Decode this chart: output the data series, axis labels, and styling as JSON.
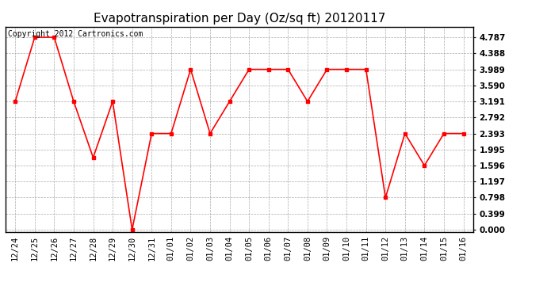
{
  "title": "Evapotranspiration per Day (Oz/sq ft) 20120117",
  "copyright_text": "Copyright 2012 Cartronics.com",
  "x_labels": [
    "12/24",
    "12/25",
    "12/26",
    "12/27",
    "12/28",
    "12/29",
    "12/30",
    "12/31",
    "01/01",
    "01/02",
    "01/03",
    "01/04",
    "01/05",
    "01/06",
    "01/07",
    "01/08",
    "01/09",
    "01/10",
    "01/11",
    "01/12",
    "01/13",
    "01/14",
    "01/15",
    "01/16"
  ],
  "y_values": [
    3.191,
    4.787,
    4.787,
    3.191,
    1.794,
    3.191,
    0.0,
    2.393,
    2.393,
    3.989,
    2.393,
    3.191,
    3.989,
    3.989,
    3.989,
    3.191,
    3.989,
    3.989,
    3.989,
    0.798,
    2.393,
    1.596,
    2.393,
    2.393
  ],
  "y_ticks": [
    0.0,
    0.399,
    0.798,
    1.197,
    1.596,
    1.995,
    2.393,
    2.792,
    3.191,
    3.59,
    3.989,
    4.388,
    4.787
  ],
  "line_color": "#ff0000",
  "marker": "s",
  "marker_size": 3,
  "background_color": "#ffffff",
  "plot_bg_color": "#ffffff",
  "grid_color": "#aaaaaa",
  "title_fontsize": 11,
  "tick_fontsize": 7.5,
  "copyright_fontsize": 7
}
